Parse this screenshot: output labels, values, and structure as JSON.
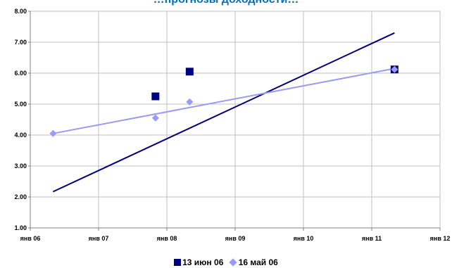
{
  "chart_data": {
    "type": "scatter",
    "title": "…прогнозы доходности…",
    "x_tick_labels": [
      "янв 06",
      "янв 07",
      "янв 08",
      "янв 09",
      "янв 10",
      "янв 11",
      "янв 12"
    ],
    "x_ticks": [
      "2006-01",
      "2007-01",
      "2008-01",
      "2009-01",
      "2010-01",
      "2011-01",
      "2012-01"
    ],
    "xlim": [
      "2006-01",
      "2012-01"
    ],
    "ylim": [
      1.0,
      8.0
    ],
    "y_tick_labels": [
      "1.00",
      "2.00",
      "3.00",
      "4.00",
      "5.00",
      "6.00",
      "7.00",
      "8.00"
    ],
    "y_ticks": [
      1,
      2,
      3,
      4,
      5,
      6,
      7,
      8
    ],
    "grid": true,
    "legend_position": "bottom",
    "series": [
      {
        "name": "13 июн 06",
        "marker": "square",
        "color": "#000080",
        "points": [
          {
            "x": "2007-11",
            "y": 5.25
          },
          {
            "x": "2008-05",
            "y": 6.05
          },
          {
            "x": "2011-05",
            "y": 6.12
          }
        ],
        "trendline": {
          "from": {
            "x": "2006-05",
            "y": 2.17
          },
          "to": {
            "x": "2011-05",
            "y": 7.3
          },
          "color": "#000080"
        }
      },
      {
        "name": "16 май 06",
        "marker": "diamond",
        "color": "#9999FF",
        "points": [
          {
            "x": "2006-05",
            "y": 4.05
          },
          {
            "x": "2007-11",
            "y": 4.55
          },
          {
            "x": "2008-05",
            "y": 5.07
          },
          {
            "x": "2011-05",
            "y": 6.12
          }
        ],
        "trendline": {
          "from": {
            "x": "2006-05",
            "y": 4.05
          },
          "to": {
            "x": "2011-05",
            "y": 6.15
          },
          "color": "#9999FF"
        }
      }
    ]
  },
  "colors": {
    "background": "#ffffff",
    "grid": "#c0c0c0",
    "axis": "#808080",
    "title": "#0070C0"
  }
}
